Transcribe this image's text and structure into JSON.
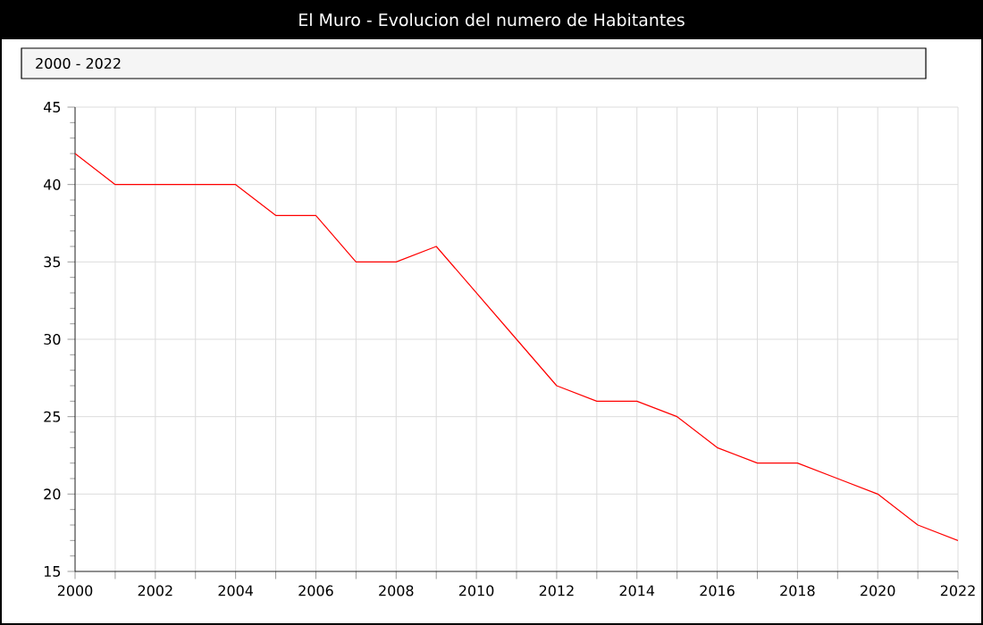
{
  "chart_data": {
    "type": "line",
    "title": "El Muro - Evolucion del numero de Habitantes",
    "annotations": [
      "2000 - 2022"
    ],
    "x": [
      2000,
      2001,
      2002,
      2003,
      2004,
      2005,
      2006,
      2007,
      2008,
      2009,
      2010,
      2011,
      2012,
      2013,
      2014,
      2015,
      2016,
      2017,
      2018,
      2019,
      2020,
      2021,
      2022
    ],
    "series": [
      {
        "color": "#ff0000",
        "values": [
          42,
          40,
          40,
          40,
          40,
          38,
          38,
          35,
          35,
          36,
          33,
          30,
          27,
          26,
          26,
          25,
          23,
          22,
          22,
          21,
          20,
          18,
          17
        ]
      }
    ],
    "xlim": [
      2000,
      2022
    ],
    "xticks": [
      2000,
      {
        "value": 2001,
        "label": null
      },
      2002,
      {
        "value": 2003,
        "label": null
      },
      2004,
      {
        "value": 2005,
        "label": null
      },
      2006,
      {
        "value": 2007,
        "label": null
      },
      2008,
      {
        "value": 2009,
        "label": null
      },
      2010,
      {
        "value": 2011,
        "label": null
      },
      2012,
      {
        "value": 2013,
        "label": null
      },
      2014,
      {
        "value": 2015,
        "label": null
      },
      2016,
      {
        "value": 2017,
        "label": null
      },
      2018,
      {
        "value": 2019,
        "label": null
      },
      2020,
      {
        "value": 2021,
        "label": null
      },
      2022
    ],
    "ylim": [
      15,
      45
    ],
    "yticks": [
      15,
      20,
      25,
      30,
      35,
      40,
      45
    ],
    "grid": true,
    "marker": "none",
    "line_style": "solid"
  }
}
